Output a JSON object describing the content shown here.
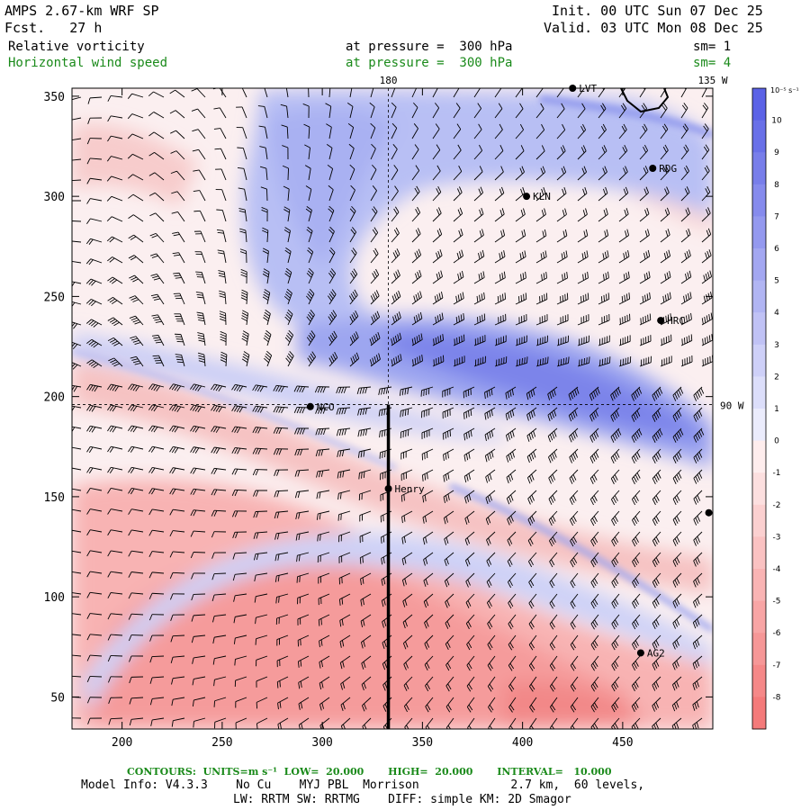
{
  "header": {
    "model": "AMPS 2.67-km WRF SP",
    "forecast": "Fcst.   27 h",
    "init": "Init. 00 UTC Sun 07 Dec 25",
    "valid": "Valid. 03 UTC Mon 08 Dec 25",
    "field1": {
      "name": "Relative vorticity",
      "level": "at pressure =  300 hPa",
      "smooth": "sm= 1"
    },
    "field2": {
      "name": "Horizontal wind speed",
      "level": "at pressure =  300 hPa",
      "smooth": "sm= 4"
    }
  },
  "map": {
    "x_axis": {
      "min": 175,
      "max": 495,
      "ticks": [
        "200",
        "250",
        "300",
        "350",
        "400",
        "450"
      ],
      "tick_values": [
        200,
        250,
        300,
        350,
        400,
        450
      ]
    },
    "y_axis": {
      "min": 34,
      "max": 354,
      "ticks": [
        "350",
        "300",
        "250",
        "200",
        "150",
        "100",
        "50"
      ],
      "tick_values": [
        350,
        300,
        250,
        200,
        150,
        100,
        50
      ]
    },
    "lon_labels": [
      {
        "text": "180",
        "x": 333
      },
      {
        "text": "135 W",
        "x": 495
      }
    ],
    "lat_labels": [
      {
        "text": "90 W",
        "y": 196
      }
    ],
    "meridian_x": 333,
    "parallel_y": 196,
    "cross_section_line": {
      "x": 333,
      "y_from": 34,
      "y_to": 196
    },
    "stations": [
      {
        "name": "LVT",
        "x": 425,
        "y": 354
      },
      {
        "name": "RDG",
        "x": 465,
        "y": 314
      },
      {
        "name": "KLN",
        "x": 402,
        "y": 300
      },
      {
        "name": "HRC",
        "x": 469,
        "y": 238
      },
      {
        "name": "NCO",
        "x": 294,
        "y": 195
      },
      {
        "name": "Henry",
        "x": 333,
        "y": 154
      },
      {
        "name": "AG2",
        "x": 459,
        "y": 72
      },
      {
        "name": "",
        "x": 493,
        "y": 142
      }
    ]
  },
  "colorbar": {
    "unit": "10⁻⁵ s⁻¹",
    "labels": [
      "10",
      "9",
      "8",
      "7",
      "6",
      "5",
      "4",
      "3",
      "2",
      "1",
      "0",
      "-1",
      "-2",
      "-3",
      "-4",
      "-5",
      "-6",
      "-7",
      "-8"
    ],
    "colors_positive": "#5a62e8",
    "colors_negative": "#f47c7c"
  },
  "footer": {
    "contours": "CONTOURS:  UNITS=m s⁻¹  LOW=  20.000       HIGH=  20.000       INTERVAL=   10.000",
    "model_info": "Model Info: V4.3.3    No Cu    MYJ PBL  Morrison             2.7 km,  60 levels,",
    "physics": "LW: RRTM SW: RRTMG    DIFF: simple KM: 2D Smagor"
  }
}
